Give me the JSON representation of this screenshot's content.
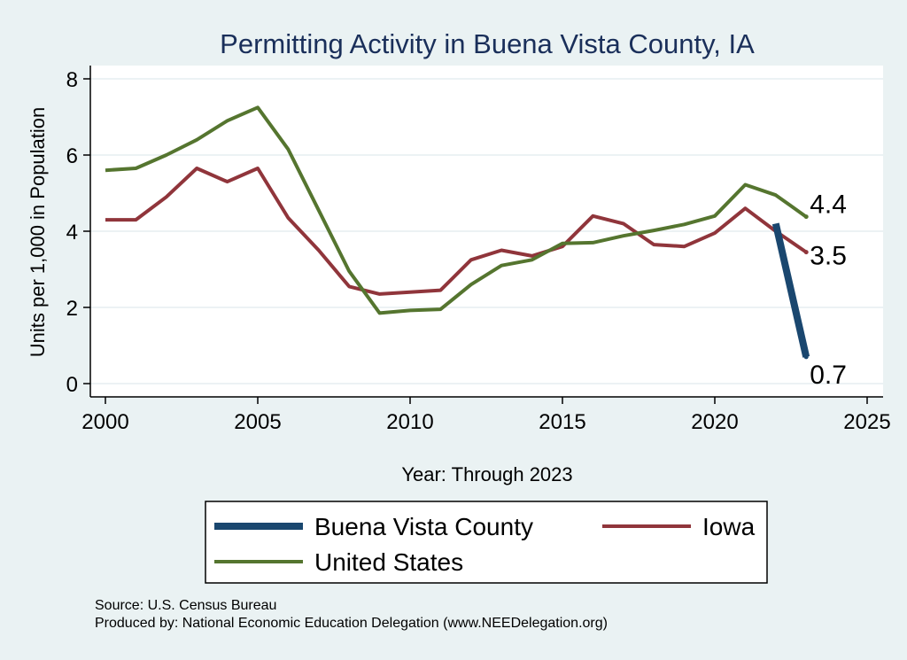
{
  "chart_data": {
    "type": "line",
    "title": "Permitting Activity in Buena Vista County, IA",
    "xlabel": "Year: Through 2023",
    "ylabel": "Units per 1,000 in Population",
    "xlim": [
      2000,
      2025
    ],
    "ylim": [
      0,
      8
    ],
    "x_ticks": [
      "2000",
      "2005",
      "2010",
      "2015",
      "2020",
      "2025"
    ],
    "y_ticks": [
      "0",
      "2",
      "4",
      "6",
      "8"
    ],
    "grid": true,
    "legend_position": "bottom",
    "series": [
      {
        "name": "Buena Vista County",
        "color": "#1a476f",
        "x": [
          2022,
          2023
        ],
        "values": [
          4.2,
          0.7
        ],
        "end_label": "0.7"
      },
      {
        "name": "Iowa",
        "color": "#90353b",
        "x": [
          2000,
          2001,
          2002,
          2003,
          2004,
          2005,
          2006,
          2007,
          2008,
          2009,
          2010,
          2011,
          2012,
          2013,
          2014,
          2015,
          2016,
          2017,
          2018,
          2019,
          2020,
          2021,
          2022,
          2023
        ],
        "values": [
          4.3,
          4.3,
          4.9,
          5.65,
          5.3,
          5.65,
          4.35,
          3.5,
          2.55,
          2.35,
          2.4,
          2.45,
          3.25,
          3.5,
          3.35,
          3.6,
          4.4,
          4.2,
          3.65,
          3.6,
          3.95,
          4.6,
          4.0,
          3.45
        ],
        "end_label": "3.5"
      },
      {
        "name": "United States",
        "color": "#55752f",
        "x": [
          2000,
          2001,
          2002,
          2003,
          2004,
          2005,
          2006,
          2007,
          2008,
          2009,
          2010,
          2011,
          2012,
          2013,
          2014,
          2015,
          2016,
          2017,
          2018,
          2019,
          2020,
          2021,
          2022,
          2023
        ],
        "values": [
          5.6,
          5.65,
          6.0,
          6.4,
          6.9,
          7.25,
          6.15,
          4.55,
          2.95,
          1.85,
          1.92,
          1.95,
          2.6,
          3.1,
          3.25,
          3.68,
          3.7,
          3.88,
          4.02,
          4.18,
          4.4,
          5.22,
          4.95,
          4.38
        ],
        "end_label": "4.4"
      }
    ],
    "legend_entries": [
      {
        "name": "Buena Vista County",
        "color": "#1a476f"
      },
      {
        "name": "Iowa",
        "color": "#90353b"
      },
      {
        "name": "United States",
        "color": "#55752f"
      }
    ],
    "notes": {
      "source": "Source: U.S. Census Bureau",
      "produced": "Produced by: National Economic Education Delegation (www.NEEDelegation.org)"
    }
  }
}
